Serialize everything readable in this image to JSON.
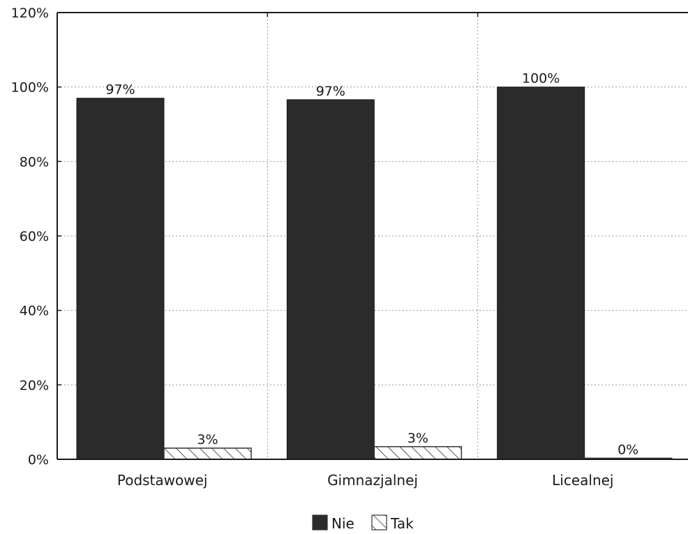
{
  "chart_data": {
    "type": "bar",
    "categories": [
      "Podstawowej",
      "Gimnazjalnej",
      "Licealnej"
    ],
    "series": [
      {
        "name": "Nie",
        "values": [
          97,
          96.6,
          100
        ],
        "labels": [
          "97%",
          "97%",
          "100%"
        ],
        "color": "#2b2b2b",
        "pattern": "solid"
      },
      {
        "name": "Tak",
        "values": [
          3,
          3.4,
          0.3
        ],
        "labels": [
          "3%",
          "3%",
          "0%"
        ],
        "color": "#ffffff",
        "pattern": "hatch"
      }
    ],
    "ylim": [
      0,
      120
    ],
    "yticks": [
      0,
      20,
      40,
      60,
      80,
      100,
      120
    ],
    "ytick_labels": [
      "0%",
      "20%",
      "40%",
      "60%",
      "80%",
      "100%",
      "120%"
    ],
    "grid": true,
    "legend_position": "bottom-center",
    "title": "",
    "xlabel": "",
    "ylabel": ""
  }
}
